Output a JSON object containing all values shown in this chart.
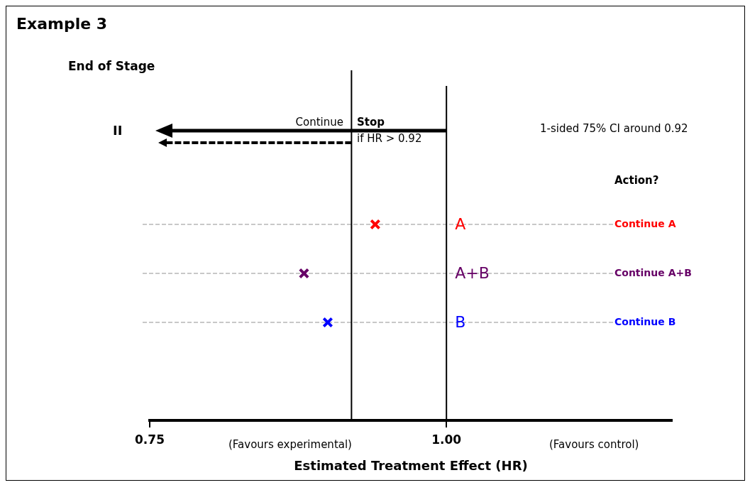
{
  "chart_data": {
    "type": "scatter",
    "title": "Example 3",
    "xlabel": "Estimated Treatment Effect (HR)",
    "orientation": "horizontal",
    "categories": [
      null,
      null,
      null,
      "A",
      "A+B",
      "B",
      null,
      null
    ],
    "values": [
      null,
      null,
      null,
      0.94,
      0.88,
      0.9,
      null,
      null
    ],
    "colors": [
      "#000000",
      "#000000",
      "#000000",
      "#ff0000",
      "#660066",
      "#0000ff",
      "#000000",
      "#000000"
    ],
    "marker": "cross",
    "grid": "y",
    "legend": false,
    "xlim": [
      0.75,
      1.19
    ],
    "xticks": [
      0.75,
      {
        "value": 1,
        "label": "1.00"
      }
    ],
    "ref_lines": [
      {
        "axis": "x",
        "value": 0.92
      },
      {
        "axis": "x",
        "value": 1
      }
    ],
    "annotations": [
      "End of Stage",
      "II",
      "Continue",
      "Stop",
      "if HR > 0.92",
      "1-sided 75% CI around 0.92",
      "Action?",
      "(Favours experimental)",
      "(Favours control)",
      "Continue A",
      "Continue A+B",
      "Continue B"
    ]
  }
}
